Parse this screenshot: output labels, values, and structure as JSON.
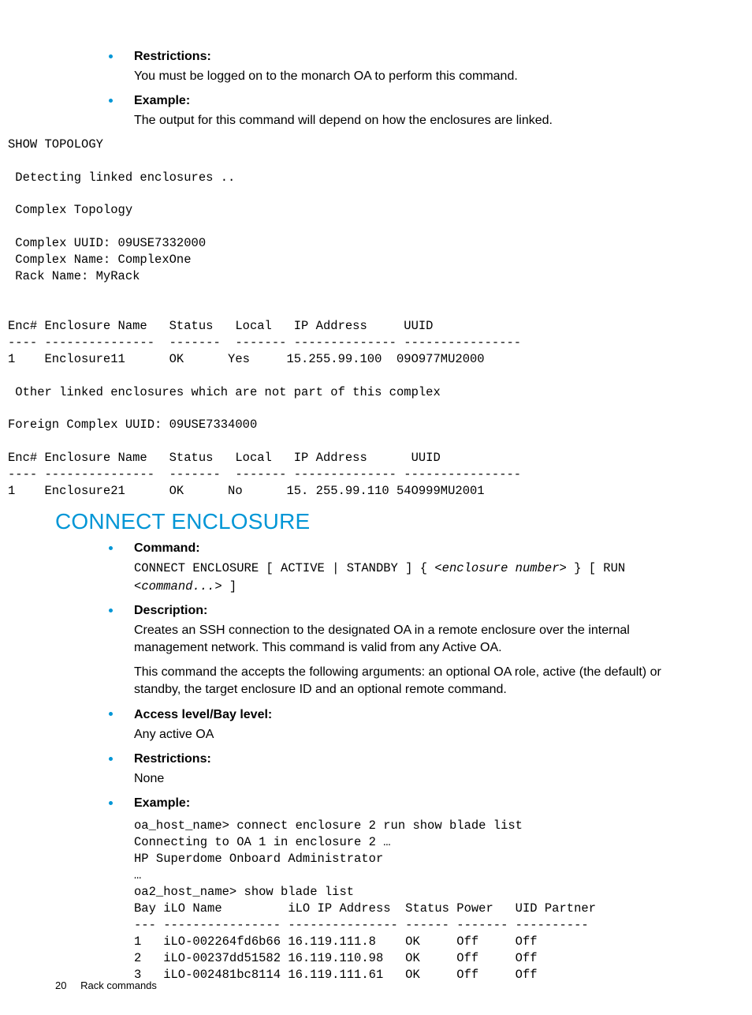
{
  "colors": {
    "accent": "#0096d6",
    "text": "#000000",
    "background": "#ffffff"
  },
  "typography": {
    "body_font": "Arial",
    "body_size_pt": 12,
    "mono_font": "Courier New",
    "mono_size_pt": 11,
    "heading_size_pt": 21,
    "heading_weight": 300
  },
  "sections": [
    {
      "items": [
        {
          "label": "Restrictions:",
          "body": "You must be logged on to the monarch OA to perform this command."
        },
        {
          "label": "Example:",
          "body": "The output for this command will depend on how the enclosures are linked.",
          "code": "SHOW TOPOLOGY\n\n Detecting linked enclosures ..\n\n Complex Topology\n\n Complex UUID: 09USE7332000\n Complex Name: ComplexOne\n Rack Name: MyRack\n\n\nEnc# Enclosure Name   Status   Local   IP Address     UUID\n---- ---------------  -------  ------- -------------- ----------------\n1    Enclosure11      OK      Yes     15.255.99.100  09O977MU2000\n\n Other linked enclosures which are not part of this complex\n\nForeign Complex UUID: 09USE7334000\n\nEnc# Enclosure Name   Status   Local   IP Address      UUID\n---- ---------------  -------  ------- -------------- ----------------\n1    Enclosure21      OK      No      15. 255.99.110 54O999MU2001"
        }
      ]
    },
    {
      "heading": "CONNECT ENCLOSURE",
      "items": [
        {
          "label": "Command:",
          "command_parts": {
            "p1": "CONNECT ENCLOSURE [ ACTIVE | STANDBY ] { <",
            "i1": "enclosure number",
            "p2": "> } [ RUN <",
            "i2": "command...",
            "p3": "> ]"
          }
        },
        {
          "label": "Description:",
          "body": "Creates an SSH connection to the designated OA in a remote enclosure over the internal management network. This command is valid from any Active OA.",
          "body2": "This command the accepts the following arguments: an optional OA role, active (the default) or standby, the target enclosure ID and an optional remote command."
        },
        {
          "label": "Access level/Bay level:",
          "body": "Any active OA"
        },
        {
          "label": "Restrictions:",
          "body": "None"
        },
        {
          "label": "Example:",
          "code": "oa_host_name> connect enclosure 2 run show blade list\nConnecting to OA 1 in enclosure 2 …\nHP Superdome Onboard Administrator\n…\noa2_host_name> show blade list\nBay iLO Name         iLO IP Address  Status Power   UID Partner\n--- ---------------- --------------- ------ ------- ----------\n1   iLO-002264fd6b66 16.119.111.8    OK     Off     Off\n2   iLO-00237dd51582 16.119.110.98   OK     Off     Off\n3   iLO-002481bc8114 16.119.111.61   OK     Off     Off"
        }
      ]
    }
  ],
  "footer": {
    "page": "20",
    "title": "Rack commands"
  }
}
